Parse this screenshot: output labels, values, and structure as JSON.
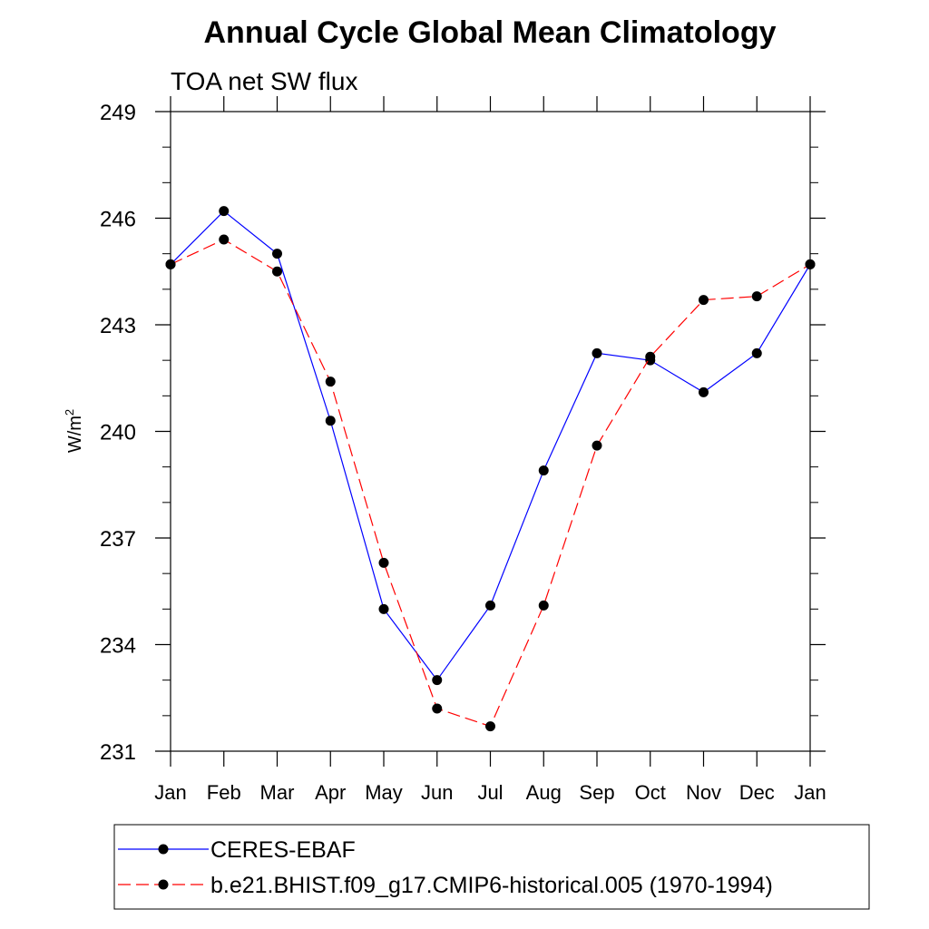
{
  "title": "Annual Cycle Global Mean Climatology",
  "chart_data": {
    "type": "line",
    "title": "Annual Cycle Global Mean Climatology",
    "subtitle": "TOA net SW flux",
    "xlabel": "",
    "ylabel": "W/m",
    "ylabel_superscript": "2",
    "categories": [
      "Jan",
      "Feb",
      "Mar",
      "Apr",
      "May",
      "Jun",
      "Jul",
      "Aug",
      "Sep",
      "Oct",
      "Nov",
      "Dec",
      "Jan"
    ],
    "ylim": [
      231,
      249
    ],
    "yticks": [
      231,
      234,
      237,
      240,
      243,
      246,
      249
    ],
    "ytick_labels": [
      "231",
      "234",
      "237",
      "240",
      "243",
      "246",
      "249"
    ],
    "grid": false,
    "legend_position": "bottom",
    "series": [
      {
        "name": "CERES-EBAF",
        "color": "#0000ff",
        "dash": "solid",
        "values": [
          244.7,
          246.2,
          245.0,
          240.3,
          235.0,
          233.0,
          235.1,
          238.9,
          242.2,
          242.0,
          241.1,
          242.2,
          244.7
        ]
      },
      {
        "name": "b.e21.BHIST.f09_g17.CMIP6-historical.005 (1970-1994)",
        "color": "#ff0000",
        "dash": "dashed",
        "values": [
          244.7,
          245.4,
          244.5,
          241.4,
          236.3,
          232.2,
          231.7,
          235.1,
          239.6,
          242.1,
          243.7,
          243.8,
          244.7
        ]
      }
    ]
  }
}
